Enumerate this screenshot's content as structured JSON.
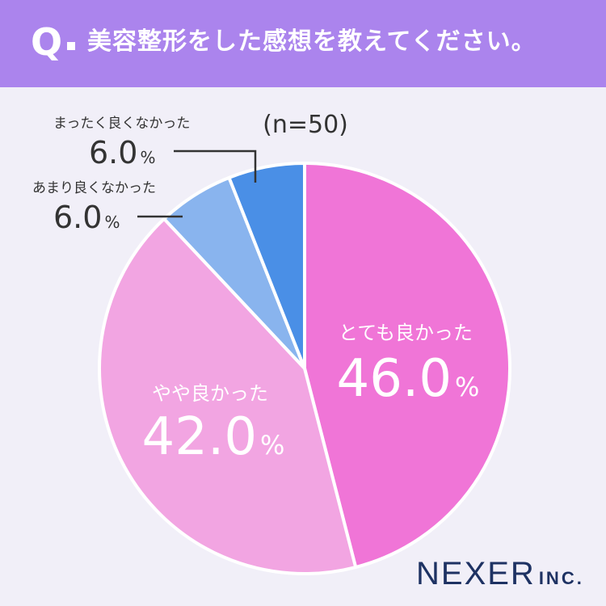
{
  "header": {
    "q_mark": "Q",
    "title": "美容整形をした感想を教えてください。"
  },
  "brand": {
    "name": "NEXER",
    "suffix": "INC."
  },
  "colors": {
    "header_bg": "#ab84ed",
    "background": "#f1eff8",
    "very_good": "#f075d7",
    "somewhat_good": "#f2a5e2",
    "not_very_good": "#89b4ee",
    "not_good_at_all": "#4a8fe6"
  },
  "chart_data": {
    "type": "pie",
    "sample_size_label": "(n=50)",
    "unit": "%",
    "slices": [
      {
        "label": "とても良かった",
        "value": 46.0,
        "display": "46.0",
        "color": "#f075d7"
      },
      {
        "label": "やや良かった",
        "value": 42.0,
        "display": "42.0",
        "color": "#f2a5e2"
      },
      {
        "label": "あまり良くなかった",
        "value": 6.0,
        "display": "6.0",
        "color": "#89b4ee"
      },
      {
        "label": "まったく良くなかった",
        "value": 6.0,
        "display": "6.0",
        "color": "#4a8fe6"
      }
    ]
  }
}
